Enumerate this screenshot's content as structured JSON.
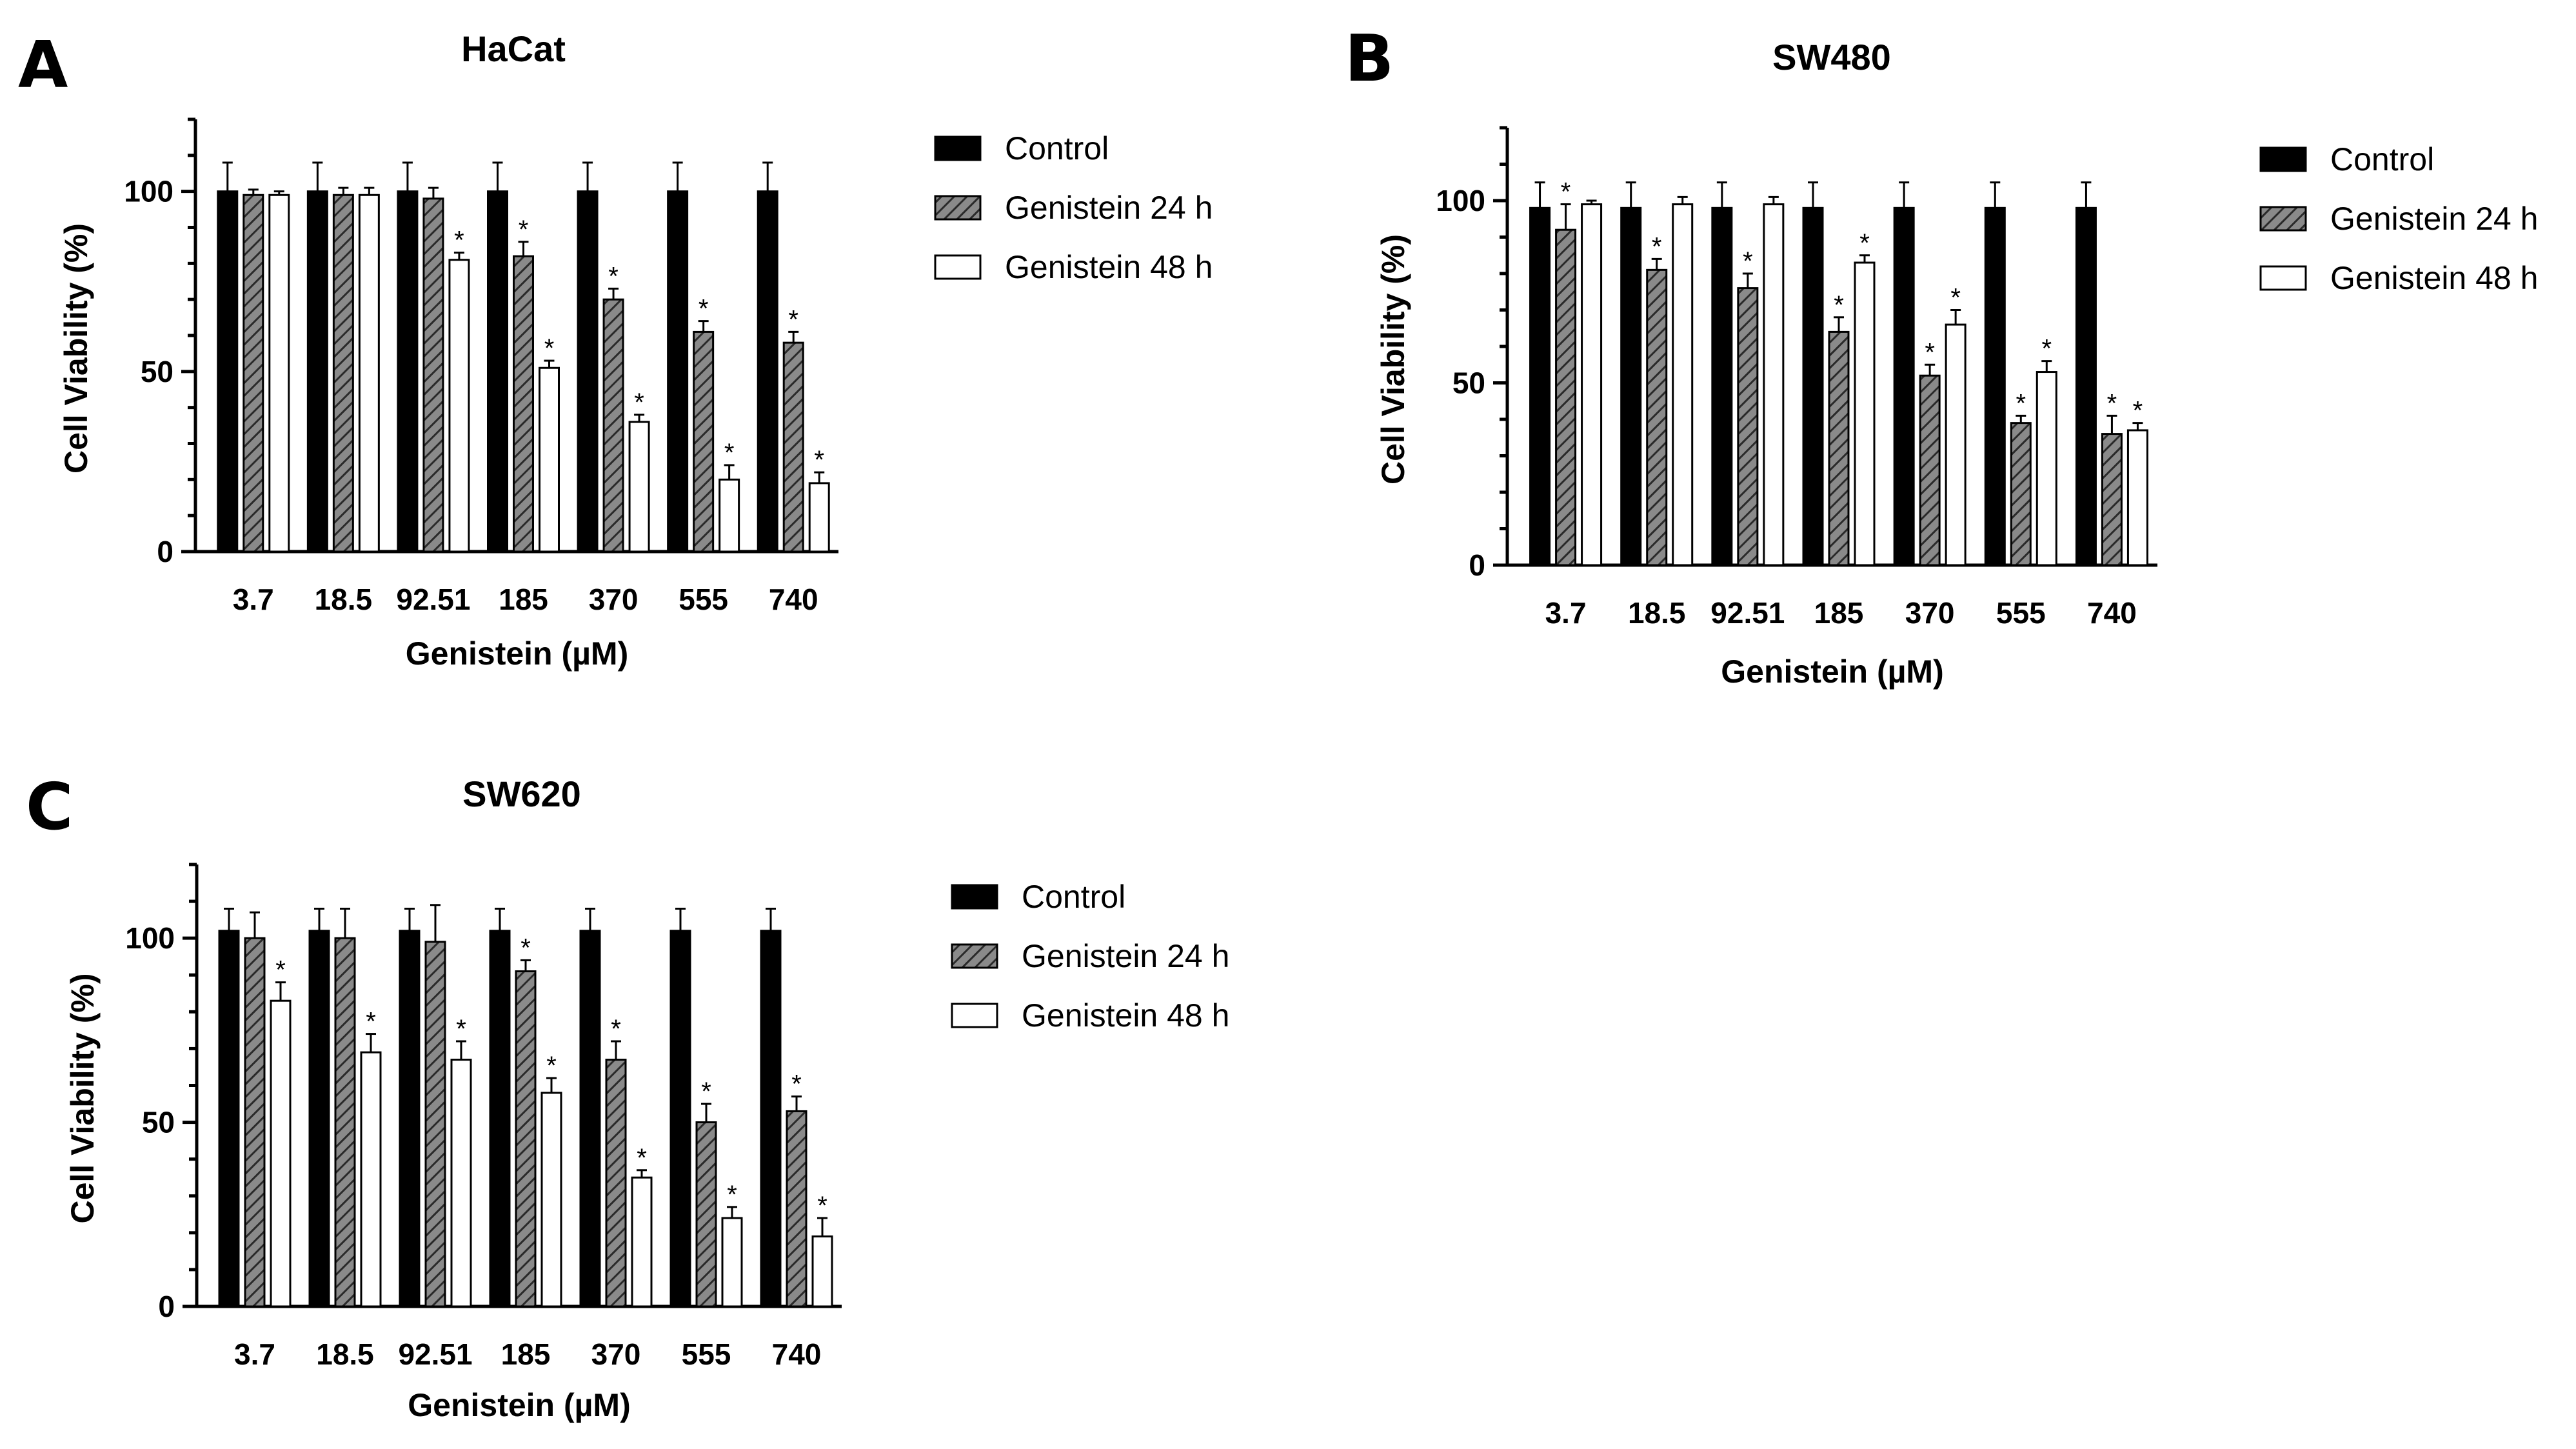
{
  "chart_data": [
    {
      "type": "bar",
      "panel": "A",
      "title": "HaCat",
      "xlabel": "Genistein (µM)",
      "ylabel": "Cell Viability (%)",
      "ylim": [
        0,
        120
      ],
      "yticks": [
        0,
        50,
        100
      ],
      "categories": [
        "3.7",
        "18.5",
        "92.51",
        "185",
        "370",
        "555",
        "740"
      ],
      "legend_position": "right",
      "series": [
        {
          "name": "Control",
          "style": "solid",
          "values": [
            100,
            100,
            100,
            100,
            100,
            100,
            100
          ],
          "errors": [
            8,
            8,
            8,
            8,
            8,
            8,
            8
          ],
          "sig": [
            false,
            false,
            false,
            false,
            false,
            false,
            false
          ]
        },
        {
          "name": "Genistein 24 h",
          "style": "hatched",
          "values": [
            99,
            99,
            98,
            82,
            70,
            61,
            58
          ],
          "errors": [
            1.5,
            2,
            3,
            4,
            3,
            3,
            3
          ],
          "sig": [
            false,
            false,
            false,
            true,
            true,
            true,
            true
          ]
        },
        {
          "name": "Genistein 48 h",
          "style": "open",
          "values": [
            99,
            99,
            81,
            51,
            36,
            20,
            19
          ],
          "errors": [
            1,
            2,
            2,
            2,
            2,
            4,
            3
          ],
          "sig": [
            false,
            false,
            true,
            true,
            true,
            true,
            true
          ]
        }
      ],
      "sig_marker": "*"
    },
    {
      "type": "bar",
      "panel": "B",
      "title": "SW480",
      "xlabel": "Genistein (µM)",
      "ylabel": "Cell Viability (%)",
      "ylim": [
        0,
        120
      ],
      "yticks": [
        0,
        50,
        100
      ],
      "categories": [
        "3.7",
        "18.5",
        "92.51",
        "185",
        "370",
        "555",
        "740"
      ],
      "legend_position": "right",
      "series": [
        {
          "name": "Control",
          "style": "solid",
          "values": [
            98,
            98,
            98,
            98,
            98,
            98,
            98
          ],
          "errors": [
            7,
            7,
            7,
            7,
            7,
            7,
            7
          ],
          "sig": [
            false,
            false,
            false,
            false,
            false,
            false,
            false
          ]
        },
        {
          "name": "Genistein 24 h",
          "style": "hatched",
          "values": [
            92,
            81,
            76,
            64,
            52,
            39,
            36
          ],
          "errors": [
            7,
            3,
            4,
            4,
            3,
            2,
            5
          ],
          "sig": [
            true,
            true,
            true,
            true,
            true,
            true,
            true
          ]
        },
        {
          "name": "Genistein 48 h",
          "style": "open",
          "values": [
            99,
            99,
            99,
            83,
            66,
            53,
            37
          ],
          "errors": [
            1,
            2,
            2,
            2,
            4,
            3,
            2
          ],
          "sig": [
            false,
            false,
            false,
            true,
            true,
            true,
            true
          ]
        }
      ],
      "sig_marker": "*"
    },
    {
      "type": "bar",
      "panel": "C",
      "title": "SW620",
      "xlabel": "Genistein (µM)",
      "ylabel": "Cell Viability (%)",
      "ylim": [
        0,
        120
      ],
      "yticks": [
        0,
        50,
        100
      ],
      "categories": [
        "3.7",
        "18.5",
        "92.51",
        "185",
        "370",
        "555",
        "740"
      ],
      "legend_position": "right",
      "series": [
        {
          "name": "Control",
          "style": "solid",
          "values": [
            102,
            102,
            102,
            102,
            102,
            102,
            102
          ],
          "errors": [
            6,
            6,
            6,
            6,
            6,
            6,
            6
          ],
          "sig": [
            false,
            false,
            false,
            false,
            false,
            false,
            false
          ]
        },
        {
          "name": "Genistein 24 h",
          "style": "hatched",
          "values": [
            100,
            100,
            99,
            91,
            67,
            50,
            53
          ],
          "errors": [
            7,
            8,
            10,
            3,
            5,
            5,
            4
          ],
          "sig": [
            false,
            false,
            false,
            true,
            true,
            true,
            true
          ]
        },
        {
          "name": "Genistein 48 h",
          "style": "open",
          "values": [
            83,
            69,
            67,
            58,
            35,
            24,
            19
          ],
          "errors": [
            5,
            5,
            5,
            4,
            2,
            3,
            5
          ],
          "sig": [
            true,
            true,
            true,
            true,
            true,
            true,
            true
          ]
        }
      ],
      "sig_marker": "*"
    }
  ]
}
